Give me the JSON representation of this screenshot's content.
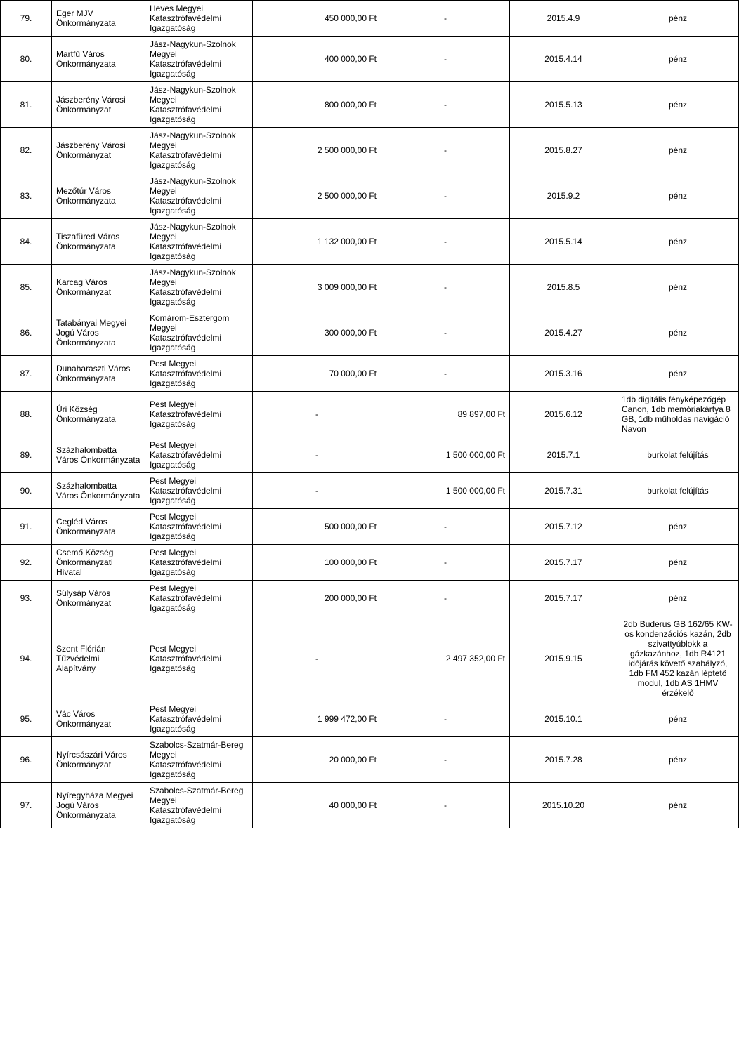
{
  "table": {
    "columns": [
      {
        "key": "num",
        "class": "col-num"
      },
      {
        "key": "donor",
        "class": "col-donor"
      },
      {
        "key": "recipient",
        "class": "col-recipient"
      },
      {
        "key": "amount1",
        "class": "col-amount1"
      },
      {
        "key": "amount2",
        "class": "col-amount2"
      },
      {
        "key": "date",
        "class": "col-date"
      },
      {
        "key": "note",
        "class": "col-note"
      }
    ],
    "rows": [
      {
        "num": "79.",
        "donor": "Eger MJV Önkormányzata",
        "recipient": "Heves Megyei Katasztrófavédelmi Igazgatóság",
        "amount1": "450 000,00 Ft",
        "amount2": "-",
        "date": "2015.4.9",
        "note": "pénz"
      },
      {
        "num": "80.",
        "donor": "Martfű Város Önkormányzata",
        "recipient": "Jász-Nagykun-Szolnok Megyei Katasztrófavédelmi Igazgatóság",
        "amount1": "400 000,00 Ft",
        "amount2": "-",
        "date": "2015.4.14",
        "note": "pénz"
      },
      {
        "num": "81.",
        "donor": "Jászberény Városi Önkormányzat",
        "recipient": "Jász-Nagykun-Szolnok Megyei Katasztrófavédelmi Igazgatóság",
        "amount1": "800 000,00 Ft",
        "amount2": "-",
        "date": "2015.5.13",
        "note": "pénz"
      },
      {
        "num": "82.",
        "donor": "Jászberény Városi Önkormányzat",
        "recipient": "Jász-Nagykun-Szolnok Megyei Katasztrófavédelmi Igazgatóság",
        "amount1": "2 500 000,00 Ft",
        "amount2": "-",
        "date": "2015.8.27",
        "note": "pénz"
      },
      {
        "num": "83.",
        "donor": "Mezőtúr Város Önkormányzata",
        "recipient": "Jász-Nagykun-Szolnok Megyei Katasztrófavédelmi Igazgatóság",
        "amount1": "2 500 000,00 Ft",
        "amount2": "-",
        "date": "2015.9.2",
        "note": "pénz"
      },
      {
        "num": "84.",
        "donor": "Tiszafüred Város Önkormányzata",
        "recipient": "Jász-Nagykun-Szolnok Megyei Katasztrófavédelmi Igazgatóság",
        "amount1": "1 132 000,00 Ft",
        "amount2": "-",
        "date": "2015.5.14",
        "note": "pénz"
      },
      {
        "num": "85.",
        "donor": "Karcag Város Önkormányzat",
        "recipient": "Jász-Nagykun-Szolnok Megyei Katasztrófavédelmi Igazgatóság",
        "amount1": "3 009 000,00 Ft",
        "amount2": "-",
        "date": "2015.8.5",
        "note": "pénz"
      },
      {
        "num": "86.",
        "donor": "Tatabányai Megyei Jogú Város Önkormányzata",
        "recipient": "Komárom-Esztergom Megyei Katasztrófavédelmi Igazgatóság",
        "amount1": "300 000,00 Ft",
        "amount2": "-",
        "date": "2015.4.27",
        "note": "pénz"
      },
      {
        "num": "87.",
        "donor": "Dunaharaszti Város Önkormányzata",
        "recipient": "Pest Megyei Katasztrófavédelmi Igazgatóság",
        "amount1": "70 000,00 Ft",
        "amount2": "-",
        "date": "2015.3.16",
        "note": "pénz"
      },
      {
        "num": "88.",
        "donor": "Úri Község Önkormányzata",
        "recipient": "Pest Megyei Katasztrófavédelmi Igazgatóság",
        "amount1": "-",
        "amount2": "89 897,00 Ft",
        "date": "2015.6.12",
        "note": "1db digitális fényképezőgép Canon, 1db memóriakártya 8 GB, 1db műholdas navigáció Navon",
        "noteAlign": "left"
      },
      {
        "num": "89.",
        "donor": "Százhalombatta Város Önkormányzata",
        "recipient": "Pest Megyei Katasztrófavédelmi Igazgatóság",
        "amount1": "-",
        "amount2": "1 500 000,00 Ft",
        "date": "2015.7.1",
        "note": "burkolat felújítás"
      },
      {
        "num": "90.",
        "donor": "Százhalombatta Város Önkormányzata",
        "recipient": "Pest Megyei Katasztrófavédelmi Igazgatóság",
        "amount1": "-",
        "amount2": "1 500 000,00 Ft",
        "date": "2015.7.31",
        "note": "burkolat felújítás"
      },
      {
        "num": "91.",
        "donor": "Cegléd Város Önkormányzata",
        "recipient": "Pest Megyei Katasztrófavédelmi Igazgatóság",
        "amount1": "500 000,00 Ft",
        "amount2": "-",
        "date": "2015.7.12",
        "note": "pénz"
      },
      {
        "num": "92.",
        "donor": "Csemő Község Önkormányzati Hivatal",
        "recipient": "Pest Megyei Katasztrófavédelmi Igazgatóság",
        "amount1": "100 000,00 Ft",
        "amount2": "-",
        "date": "2015.7.17",
        "note": "pénz"
      },
      {
        "num": "93.",
        "donor": "Sülysáp Város Önkormányzat",
        "recipient": "Pest Megyei Katasztrófavédelmi Igazgatóság",
        "amount1": "200 000,00 Ft",
        "amount2": "-",
        "date": "2015.7.17",
        "note": "pénz"
      },
      {
        "num": "94.",
        "donor": "Szent Flórián Tűzvédelmi Alapítvány",
        "recipient": "Pest Megyei Katasztrófavédelmi Igazgatóság",
        "amount1": "-",
        "amount2": "2 497 352,00 Ft",
        "date": "2015.9.15",
        "note": "2db Buderus GB 162/65 KW-os kondenzációs kazán, 2db szivattyúblokk a gázkazánhoz, 1db R4121 időjárás követő szabályzó, 1db FM 452 kazán léptető modul, 1db AS 1HMV érzékelő",
        "noteAlign": "center"
      },
      {
        "num": "95.",
        "donor": "Vác Város Önkormányzat",
        "recipient": "Pest Megyei Katasztrófavédelmi Igazgatóság",
        "amount1": "1 999 472,00 Ft",
        "amount2": "-",
        "date": "2015.10.1",
        "note": "pénz"
      },
      {
        "num": "96.",
        "donor": "Nyírcsászári Város Önkormányzat",
        "recipient": "Szabolcs-Szatmár-Bereg Megyei Katasztrófavédelmi Igazgatóság",
        "amount1": "20 000,00 Ft",
        "amount2": "-",
        "date": "2015.7.28",
        "note": "pénz"
      },
      {
        "num": "97.",
        "donor": "Nyíregyháza Megyei Jogú Város Önkormányzata",
        "recipient": "Szabolcs-Szatmár-Bereg Megyei Katasztrófavédelmi Igazgatóság",
        "amount1": "40 000,00 Ft",
        "amount2": "-",
        "date": "2015.10.20",
        "note": "pénz"
      }
    ]
  }
}
